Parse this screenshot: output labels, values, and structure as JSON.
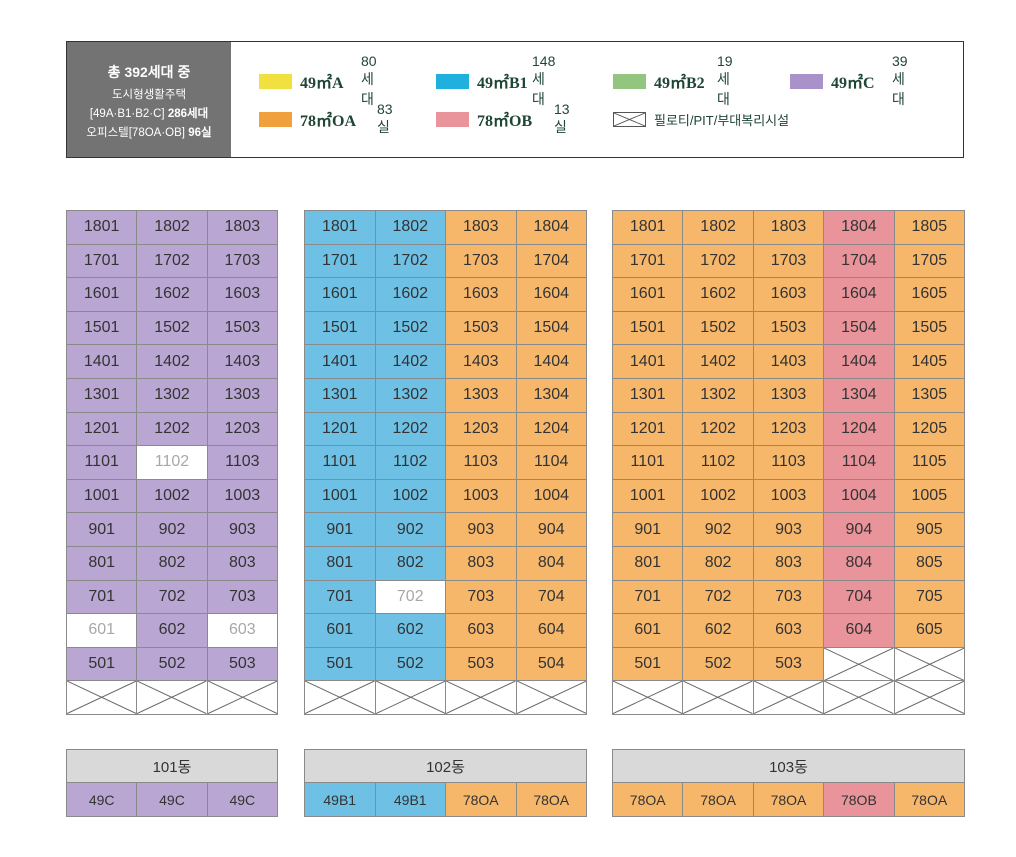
{
  "summary": {
    "total_prefix": "총 ",
    "total_value": "392세대",
    "total_suffix": " 중",
    "line1": "도시형생활주택",
    "line2_prefix": "[49A·B1·B2·C] ",
    "line2_value": "286세대",
    "line3_prefix": "오피스텔[78OA·OB] ",
    "line3_value": "96실"
  },
  "legend": [
    {
      "name": "49㎡A",
      "count": "80세대",
      "color": "#f0e040"
    },
    {
      "name": "49㎡B1",
      "count": "148세대",
      "color": "#1fb0de"
    },
    {
      "name": "49㎡B2",
      "count": "19세대",
      "color": "#92c67e"
    },
    {
      "name": "49㎡C",
      "count": "39세대",
      "color": "#a892c9"
    },
    {
      "name": "78㎡OA",
      "count": "83실",
      "color": "#f0a03c"
    },
    {
      "name": "78㎡OB",
      "count": "13실",
      "color": "#e8949a"
    }
  ],
  "legend_note": "필로티/PIT/부대복리시설",
  "colors": {
    "49C": "#b9a6d2",
    "49B1": "#6ec1e4",
    "78OA": "#f6b76a",
    "78OB": "#e8949a",
    "empty": "#ffffff"
  },
  "buildings": [
    {
      "label": "101동",
      "types": [
        "49C",
        "49C",
        "49C"
      ],
      "empty_units": [
        "1102",
        "601",
        "603"
      ],
      "pilotis_units": []
    },
    {
      "label": "102동",
      "types": [
        "49B1",
        "49B1",
        "78OA",
        "78OA"
      ],
      "empty_units": [
        "702"
      ],
      "pilotis_units": []
    },
    {
      "label": "103동",
      "types": [
        "78OA",
        "78OA",
        "78OA",
        "78OB",
        "78OA"
      ],
      "empty_units": [],
      "pilotis_units": [
        "504",
        "505"
      ]
    }
  ],
  "floors": [
    "18",
    "17",
    "16",
    "15",
    "14",
    "13",
    "12",
    "11",
    "10",
    "9",
    "8",
    "7",
    "6",
    "5"
  ]
}
